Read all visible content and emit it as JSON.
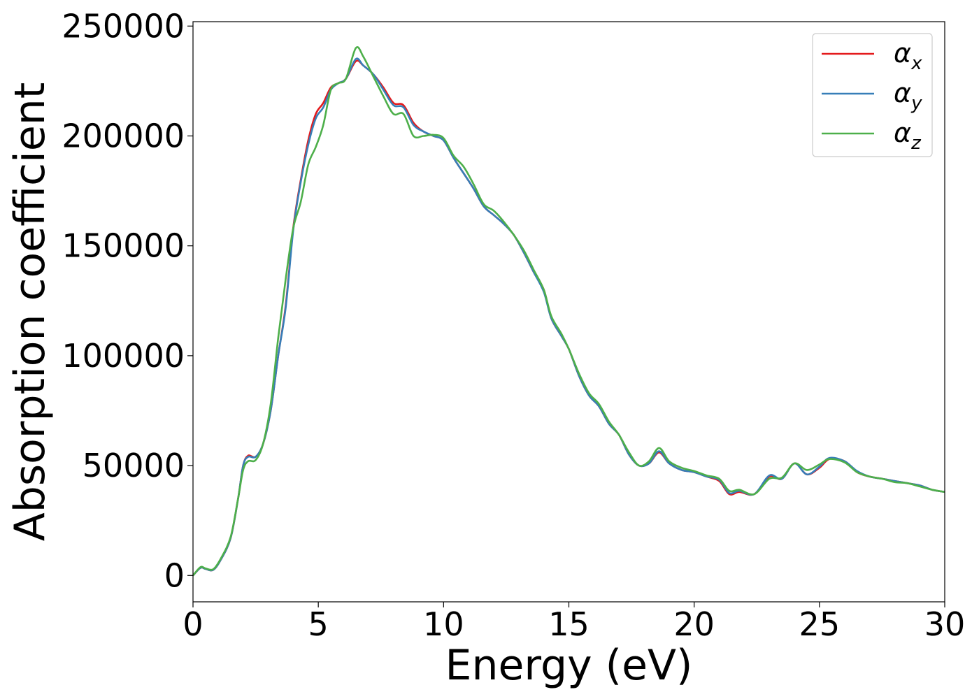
{
  "chart_data": {
    "type": "line",
    "xlabel": "Energy (eV)",
    "ylabel": "Absorption coefficient",
    "xlim": [
      0,
      30
    ],
    "ylim": [
      -12000,
      252000
    ],
    "xticks": [
      0,
      5,
      10,
      15,
      20,
      25,
      30
    ],
    "yticks": [
      0,
      50000,
      100000,
      150000,
      200000,
      250000
    ],
    "grid": false,
    "legend_position": "top-right",
    "series": [
      {
        "name": "α",
        "subscript": "x",
        "color": "#e41a1c",
        "points": [
          [
            0,
            0
          ],
          [
            0.3,
            3500
          ],
          [
            0.5,
            3000
          ],
          [
            0.8,
            2500
          ],
          [
            1.1,
            7000
          ],
          [
            1.5,
            17000
          ],
          [
            1.8,
            35000
          ],
          [
            2.0,
            50000
          ],
          [
            2.2,
            54500
          ],
          [
            2.5,
            54000
          ],
          [
            2.8,
            60000
          ],
          [
            3.1,
            75000
          ],
          [
            3.4,
            100000
          ],
          [
            3.7,
            123000
          ],
          [
            4.0,
            158000
          ],
          [
            4.3,
            180000
          ],
          [
            4.6,
            198000
          ],
          [
            4.9,
            210000
          ],
          [
            5.2,
            215000
          ],
          [
            5.5,
            222000
          ],
          [
            5.8,
            224000
          ],
          [
            6.1,
            226000
          ],
          [
            6.5,
            234000
          ],
          [
            6.8,
            232000
          ],
          [
            7.2,
            228000
          ],
          [
            7.6,
            222000
          ],
          [
            8.0,
            215000
          ],
          [
            8.4,
            214000
          ],
          [
            8.8,
            206000
          ],
          [
            9.2,
            202000
          ],
          [
            9.6,
            200000
          ],
          [
            10.0,
            198000
          ],
          [
            10.4,
            190000
          ],
          [
            10.8,
            183000
          ],
          [
            11.2,
            176000
          ],
          [
            11.6,
            168000
          ],
          [
            12.0,
            164000
          ],
          [
            12.4,
            160000
          ],
          [
            12.8,
            155000
          ],
          [
            13.2,
            147000
          ],
          [
            13.6,
            138000
          ],
          [
            14.0,
            130000
          ],
          [
            14.3,
            117000
          ],
          [
            14.7,
            109000
          ],
          [
            15.0,
            103000
          ],
          [
            15.4,
            91000
          ],
          [
            15.8,
            82000
          ],
          [
            16.2,
            77000
          ],
          [
            16.6,
            69000
          ],
          [
            17.0,
            64000
          ],
          [
            17.4,
            55000
          ],
          [
            17.8,
            50000
          ],
          [
            18.2,
            51000
          ],
          [
            18.6,
            56000
          ],
          [
            19.0,
            51000
          ],
          [
            19.5,
            48000
          ],
          [
            20.0,
            47000
          ],
          [
            20.5,
            45000
          ],
          [
            21.0,
            43000
          ],
          [
            21.4,
            37000
          ],
          [
            21.8,
            38000
          ],
          [
            22.4,
            37000
          ],
          [
            23.0,
            45000
          ],
          [
            23.5,
            44000
          ],
          [
            24.0,
            51000
          ],
          [
            24.5,
            46000
          ],
          [
            25.0,
            49000
          ],
          [
            25.4,
            53000
          ],
          [
            26.0,
            52000
          ],
          [
            26.5,
            47000
          ],
          [
            27.0,
            45000
          ],
          [
            27.5,
            44000
          ],
          [
            28.0,
            43000
          ],
          [
            28.5,
            42000
          ],
          [
            29.0,
            41000
          ],
          [
            29.5,
            39000
          ],
          [
            30.0,
            38000
          ]
        ]
      },
      {
        "name": "α",
        "subscript": "y",
        "color": "#377eb8",
        "points": [
          [
            0,
            0
          ],
          [
            0.3,
            3500
          ],
          [
            0.5,
            3000
          ],
          [
            0.8,
            2500
          ],
          [
            1.1,
            7000
          ],
          [
            1.5,
            17000
          ],
          [
            1.8,
            35000
          ],
          [
            2.0,
            50000
          ],
          [
            2.2,
            54000
          ],
          [
            2.5,
            54000
          ],
          [
            2.8,
            60000
          ],
          [
            3.1,
            75000
          ],
          [
            3.4,
            100000
          ],
          [
            3.7,
            122000
          ],
          [
            4.0,
            157000
          ],
          [
            4.3,
            179000
          ],
          [
            4.6,
            196000
          ],
          [
            4.9,
            208000
          ],
          [
            5.2,
            213000
          ],
          [
            5.5,
            221000
          ],
          [
            5.8,
            224000
          ],
          [
            6.1,
            226000
          ],
          [
            6.5,
            235000
          ],
          [
            6.8,
            232000
          ],
          [
            7.2,
            228000
          ],
          [
            7.6,
            221000
          ],
          [
            8.0,
            214000
          ],
          [
            8.4,
            213000
          ],
          [
            8.8,
            205000
          ],
          [
            9.2,
            202000
          ],
          [
            9.6,
            200000
          ],
          [
            10.0,
            198000
          ],
          [
            10.4,
            190000
          ],
          [
            10.8,
            183000
          ],
          [
            11.2,
            176000
          ],
          [
            11.6,
            168000
          ],
          [
            12.0,
            164000
          ],
          [
            12.4,
            160000
          ],
          [
            12.8,
            155000
          ],
          [
            13.2,
            147000
          ],
          [
            13.6,
            138000
          ],
          [
            14.0,
            129000
          ],
          [
            14.3,
            117000
          ],
          [
            14.7,
            109000
          ],
          [
            15.0,
            103000
          ],
          [
            15.4,
            91000
          ],
          [
            15.8,
            82000
          ],
          [
            16.2,
            77000
          ],
          [
            16.6,
            69000
          ],
          [
            17.0,
            64000
          ],
          [
            17.4,
            55000
          ],
          [
            17.8,
            50000
          ],
          [
            18.2,
            51000
          ],
          [
            18.6,
            56500
          ],
          [
            19.0,
            51000
          ],
          [
            19.5,
            48000
          ],
          [
            20.0,
            47000
          ],
          [
            20.5,
            45000
          ],
          [
            21.0,
            43500
          ],
          [
            21.4,
            37500
          ],
          [
            21.8,
            38500
          ],
          [
            22.4,
            37000
          ],
          [
            23.0,
            45500
          ],
          [
            23.5,
            44000
          ],
          [
            24.0,
            51000
          ],
          [
            24.5,
            46000
          ],
          [
            25.0,
            49500
          ],
          [
            25.4,
            53500
          ],
          [
            26.0,
            52000
          ],
          [
            26.5,
            47500
          ],
          [
            27.0,
            45000
          ],
          [
            27.5,
            44000
          ],
          [
            28.0,
            43000
          ],
          [
            28.5,
            42000
          ],
          [
            29.0,
            41000
          ],
          [
            29.5,
            39000
          ],
          [
            30.0,
            38000
          ]
        ]
      },
      {
        "name": "α",
        "subscript": "z",
        "color": "#4daf4a",
        "points": [
          [
            0,
            0
          ],
          [
            0.3,
            3800
          ],
          [
            0.5,
            3200
          ],
          [
            0.8,
            2800
          ],
          [
            1.1,
            7500
          ],
          [
            1.5,
            17500
          ],
          [
            1.8,
            35000
          ],
          [
            2.0,
            48000
          ],
          [
            2.2,
            52000
          ],
          [
            2.5,
            52500
          ],
          [
            2.8,
            60000
          ],
          [
            3.1,
            78000
          ],
          [
            3.4,
            108000
          ],
          [
            3.7,
            135000
          ],
          [
            4.0,
            158000
          ],
          [
            4.3,
            170000
          ],
          [
            4.6,
            187000
          ],
          [
            4.9,
            195000
          ],
          [
            5.2,
            205000
          ],
          [
            5.5,
            221000
          ],
          [
            5.8,
            224000
          ],
          [
            6.1,
            226000
          ],
          [
            6.5,
            240000
          ],
          [
            6.8,
            236000
          ],
          [
            7.2,
            227000
          ],
          [
            7.6,
            218000
          ],
          [
            8.0,
            210000
          ],
          [
            8.4,
            210000
          ],
          [
            8.8,
            200000
          ],
          [
            9.2,
            200000
          ],
          [
            9.6,
            200500
          ],
          [
            10.0,
            199000
          ],
          [
            10.4,
            191000
          ],
          [
            10.8,
            186000
          ],
          [
            11.2,
            178000
          ],
          [
            11.6,
            169000
          ],
          [
            12.0,
            166000
          ],
          [
            12.4,
            161000
          ],
          [
            12.8,
            155000
          ],
          [
            13.2,
            148000
          ],
          [
            13.6,
            139000
          ],
          [
            14.0,
            130000
          ],
          [
            14.3,
            118000
          ],
          [
            14.7,
            110000
          ],
          [
            15.0,
            103000
          ],
          [
            15.4,
            92000
          ],
          [
            15.8,
            83000
          ],
          [
            16.2,
            78000
          ],
          [
            16.6,
            70000
          ],
          [
            17.0,
            64000
          ],
          [
            17.4,
            56000
          ],
          [
            17.8,
            50000
          ],
          [
            18.2,
            52000
          ],
          [
            18.6,
            58000
          ],
          [
            19.0,
            52000
          ],
          [
            19.5,
            49000
          ],
          [
            20.0,
            47500
          ],
          [
            20.5,
            45500
          ],
          [
            21.0,
            44000
          ],
          [
            21.4,
            38500
          ],
          [
            21.8,
            39000
          ],
          [
            22.4,
            37000
          ],
          [
            23.0,
            44000
          ],
          [
            23.5,
            44500
          ],
          [
            24.0,
            51000
          ],
          [
            24.5,
            48000
          ],
          [
            25.0,
            50500
          ],
          [
            25.4,
            53000
          ],
          [
            26.0,
            51500
          ],
          [
            26.5,
            47000
          ],
          [
            27.0,
            45000
          ],
          [
            27.5,
            44000
          ],
          [
            28.0,
            42500
          ],
          [
            28.5,
            42000
          ],
          [
            29.0,
            40500
          ],
          [
            29.5,
            39000
          ],
          [
            30.0,
            38000
          ]
        ]
      }
    ]
  }
}
